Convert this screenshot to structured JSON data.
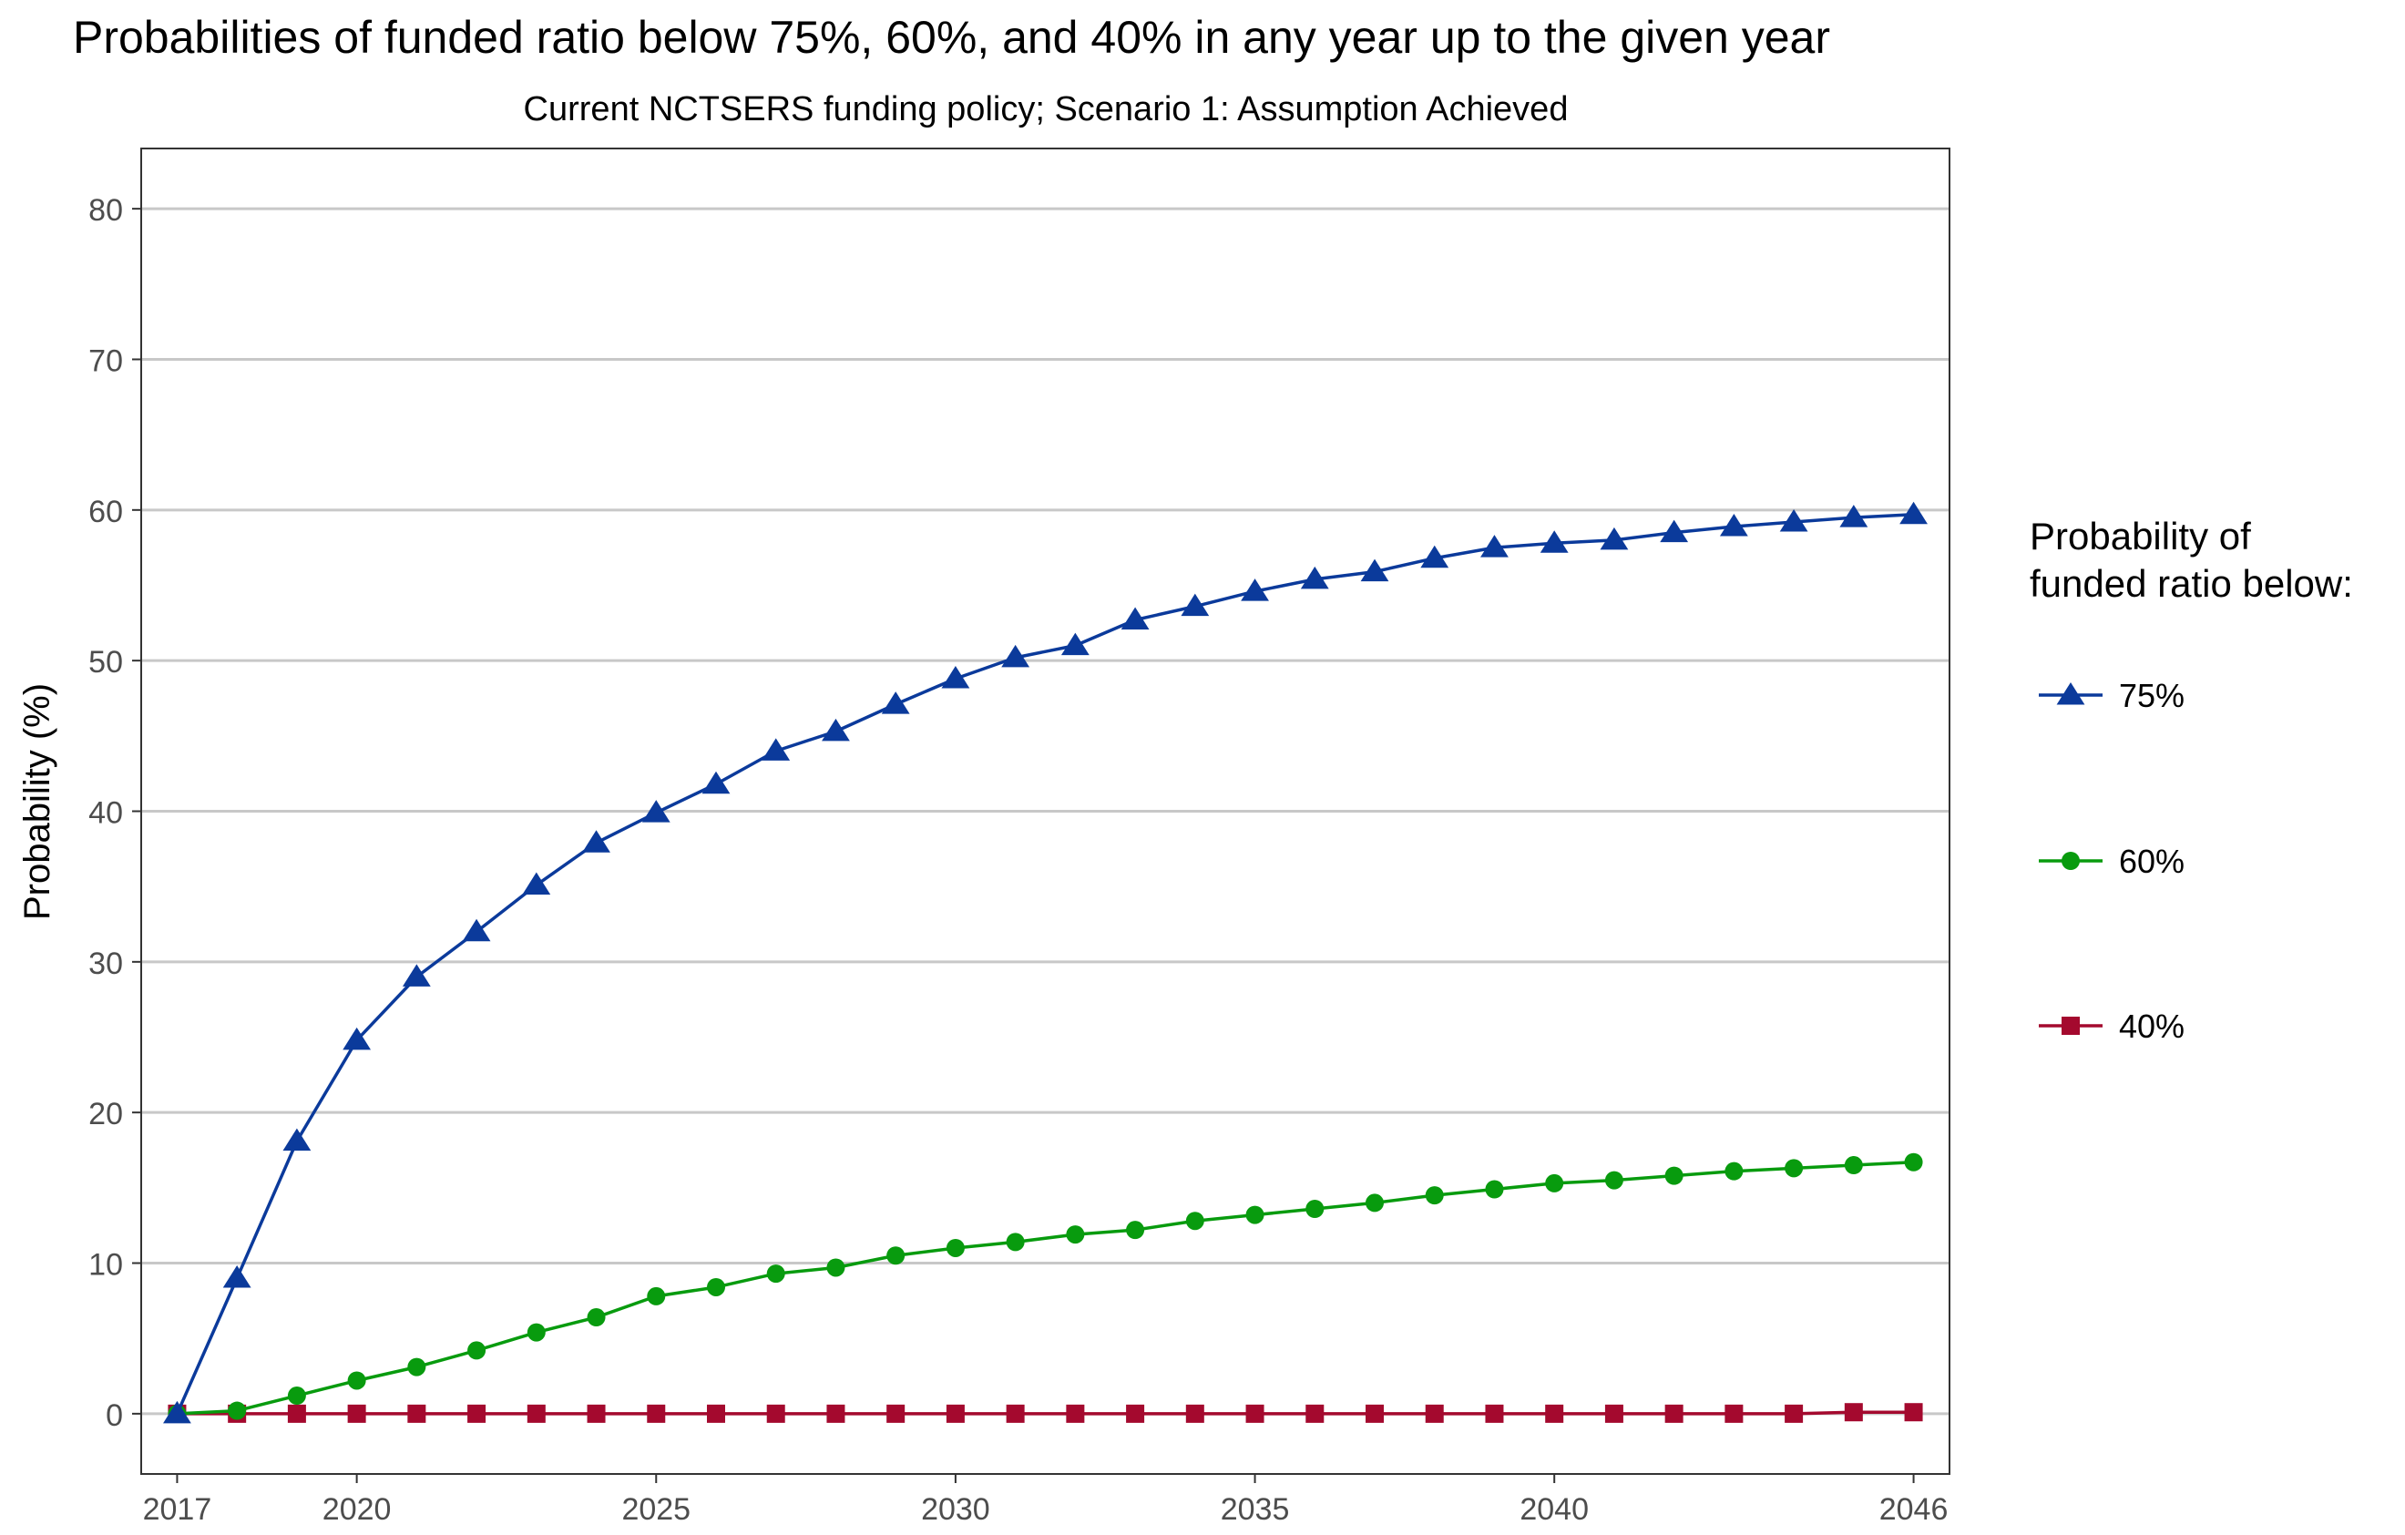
{
  "chart_data": {
    "type": "line",
    "title": "Probabilities of funded ratio below 75%, 60%, and 40% in any year up to the given year",
    "subtitle": "Current NCTSERS funding policy; Scenario 1: Assumption Achieved",
    "xlabel": "",
    "ylabel": "Probability (%)",
    "xlim": [
      2016.4,
      2046.6
    ],
    "ylim": [
      -4,
      84
    ],
    "x_ticks": [
      2017,
      2020,
      2025,
      2030,
      2035,
      2040,
      2046
    ],
    "y_ticks": [
      0,
      10,
      20,
      30,
      40,
      50,
      60,
      70,
      80
    ],
    "grid": "horizontal",
    "legend": {
      "title": "Probability of\nfunded ratio below:",
      "position": "right"
    },
    "x": [
      2017,
      2018,
      2019,
      2020,
      2021,
      2022,
      2023,
      2024,
      2025,
      2026,
      2027,
      2028,
      2029,
      2030,
      2031,
      2032,
      2033,
      2034,
      2035,
      2036,
      2037,
      2038,
      2039,
      2040,
      2041,
      2042,
      2043,
      2044,
      2045,
      2046
    ],
    "series": [
      {
        "name": "75%",
        "color": "#0B3A9B",
        "marker": "triangle",
        "values": [
          0,
          9.0,
          18.1,
          24.8,
          29.0,
          32.0,
          35.1,
          37.9,
          39.9,
          41.8,
          44.0,
          45.3,
          47.1,
          48.8,
          50.2,
          51.0,
          52.7,
          53.6,
          54.6,
          55.4,
          55.9,
          56.8,
          57.5,
          57.8,
          58.0,
          58.5,
          58.9,
          59.2,
          59.5,
          59.7
        ]
      },
      {
        "name": "60%",
        "color": "#089B0E",
        "marker": "circle",
        "values": [
          0,
          0.2,
          1.2,
          2.2,
          3.1,
          4.2,
          5.4,
          6.4,
          7.8,
          8.4,
          9.3,
          9.7,
          10.5,
          11.0,
          11.4,
          11.9,
          12.2,
          12.8,
          13.2,
          13.6,
          14.0,
          14.5,
          14.9,
          15.3,
          15.5,
          15.8,
          16.1,
          16.3,
          16.5,
          16.7
        ]
      },
      {
        "name": "40%",
        "color": "#A4092E",
        "marker": "square",
        "values": [
          0,
          0,
          0,
          0,
          0,
          0,
          0,
          0,
          0,
          0,
          0,
          0,
          0,
          0,
          0,
          0,
          0,
          0,
          0,
          0,
          0,
          0,
          0,
          0,
          0,
          0,
          0,
          0,
          0.1,
          0.1
        ]
      }
    ]
  }
}
